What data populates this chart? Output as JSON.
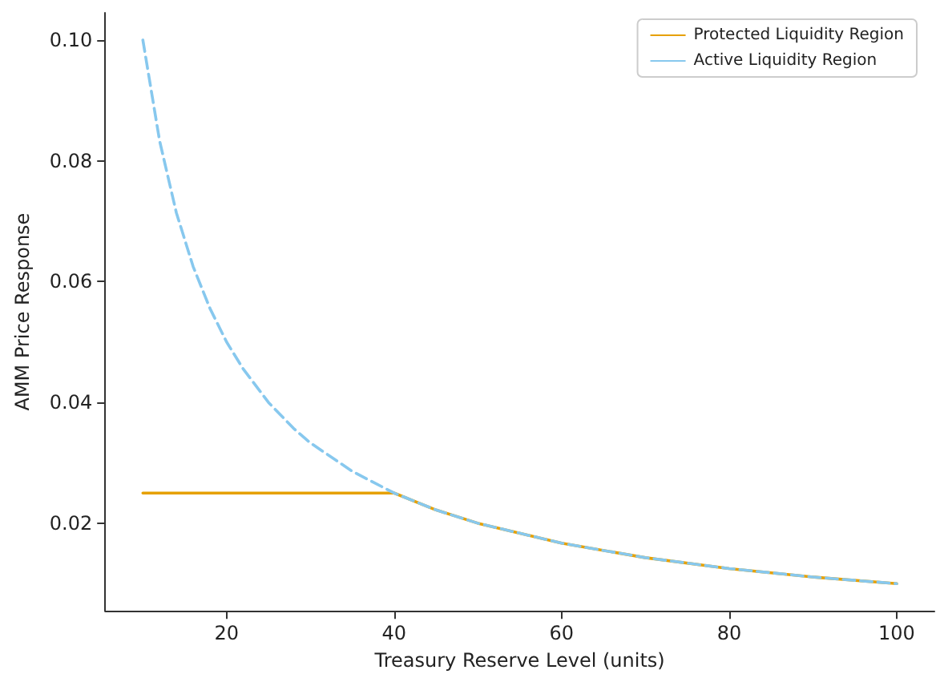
{
  "chart_data": {
    "type": "line",
    "xlabel": "Treasury Reserve Level (units)",
    "ylabel": "AMM Price Response",
    "xlim": [
      5.5,
      104.5
    ],
    "ylim": [
      0.0055,
      0.1045
    ],
    "xticks": [
      20,
      40,
      60,
      80,
      100
    ],
    "yticks": [
      {
        "value": 0.02,
        "label": "0.02"
      },
      {
        "value": 0.04,
        "label": "0.04"
      },
      {
        "value": 0.06,
        "label": "0.06"
      },
      {
        "value": 0.08,
        "label": "0.08"
      },
      {
        "value": 0.1,
        "label": "0.10"
      }
    ],
    "grid": false,
    "legend": "top right",
    "marker": "none",
    "series": [
      {
        "name": "Protected Liquidity Region",
        "color": "#e6a000",
        "line_style": "solid",
        "x": [
          10,
          40,
          45,
          50,
          60,
          70,
          80,
          90,
          100
        ],
        "values": [
          0.025,
          0.025,
          0.0222,
          0.02,
          0.0167,
          0.0143,
          0.0125,
          0.0111,
          0.01
        ]
      },
      {
        "name": "Active Liquidity Region",
        "color": "#87c8ee",
        "line_style": "dashed",
        "x": [
          10,
          12,
          14,
          16,
          18,
          20,
          22,
          25,
          28,
          30,
          35,
          40,
          45,
          50,
          60,
          70,
          80,
          90,
          100
        ],
        "values": [
          0.1,
          0.0833,
          0.0714,
          0.0625,
          0.0556,
          0.05,
          0.0455,
          0.04,
          0.0357,
          0.0333,
          0.0286,
          0.025,
          0.0222,
          0.02,
          0.0167,
          0.0143,
          0.0125,
          0.0111,
          0.01
        ]
      }
    ]
  }
}
